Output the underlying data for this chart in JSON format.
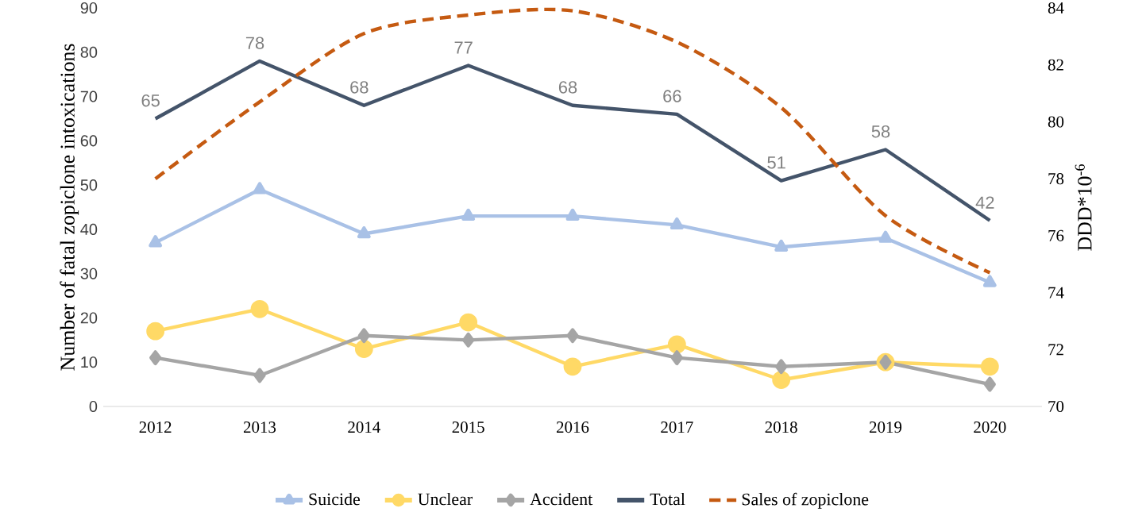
{
  "chart_data": {
    "type": "line",
    "categories": [
      "2012",
      "2013",
      "2014",
      "2015",
      "2016",
      "2017",
      "2018",
      "2019",
      "2020"
    ],
    "ylabel": "Number of fatal zopiclone intoxications",
    "y2label": "DDD*10$^{-6}$",
    "ylim": [
      0,
      90
    ],
    "yticks": [
      0,
      10,
      20,
      30,
      40,
      50,
      60,
      70,
      80,
      90
    ],
    "y2lim": [
      70,
      84
    ],
    "y2ticks": [
      70,
      72,
      74,
      76,
      78,
      80,
      82,
      84
    ],
    "legend": "bottom",
    "series": [
      {
        "name": "Suicide",
        "color": "#a9c1e6",
        "marker": "triangle",
        "line_style": "solid",
        "values": [
          37,
          49,
          39,
          43,
          43,
          41,
          36,
          38,
          28
        ]
      },
      {
        "name": "Unclear",
        "color": "#ffd966",
        "marker": "circle",
        "line_style": "solid",
        "values": [
          17,
          22,
          13,
          19,
          9,
          14,
          6,
          10,
          9
        ]
      },
      {
        "name": "Accident",
        "color": "#a5a5a5",
        "marker": "diamond",
        "line_style": "solid",
        "values": [
          11,
          7,
          16,
          15,
          16,
          11,
          9,
          10,
          5
        ]
      },
      {
        "name": "Total",
        "color": "#44546a",
        "marker": "none",
        "line_style": "solid",
        "values": [
          65,
          78,
          68,
          77,
          68,
          66,
          51,
          58,
          42
        ],
        "value_labels": [
          "65",
          "78",
          "68",
          "77",
          "68",
          "66",
          "51",
          "58",
          "42"
        ]
      },
      {
        "name": "Sales of zopiclone",
        "color": "#c55a11",
        "marker": "none",
        "line_style": "dashed",
        "axis": "y2",
        "values": [
          78.0,
          80.7,
          83.1,
          83.75,
          83.9,
          82.8,
          80.5,
          76.7,
          74.7
        ]
      }
    ]
  }
}
